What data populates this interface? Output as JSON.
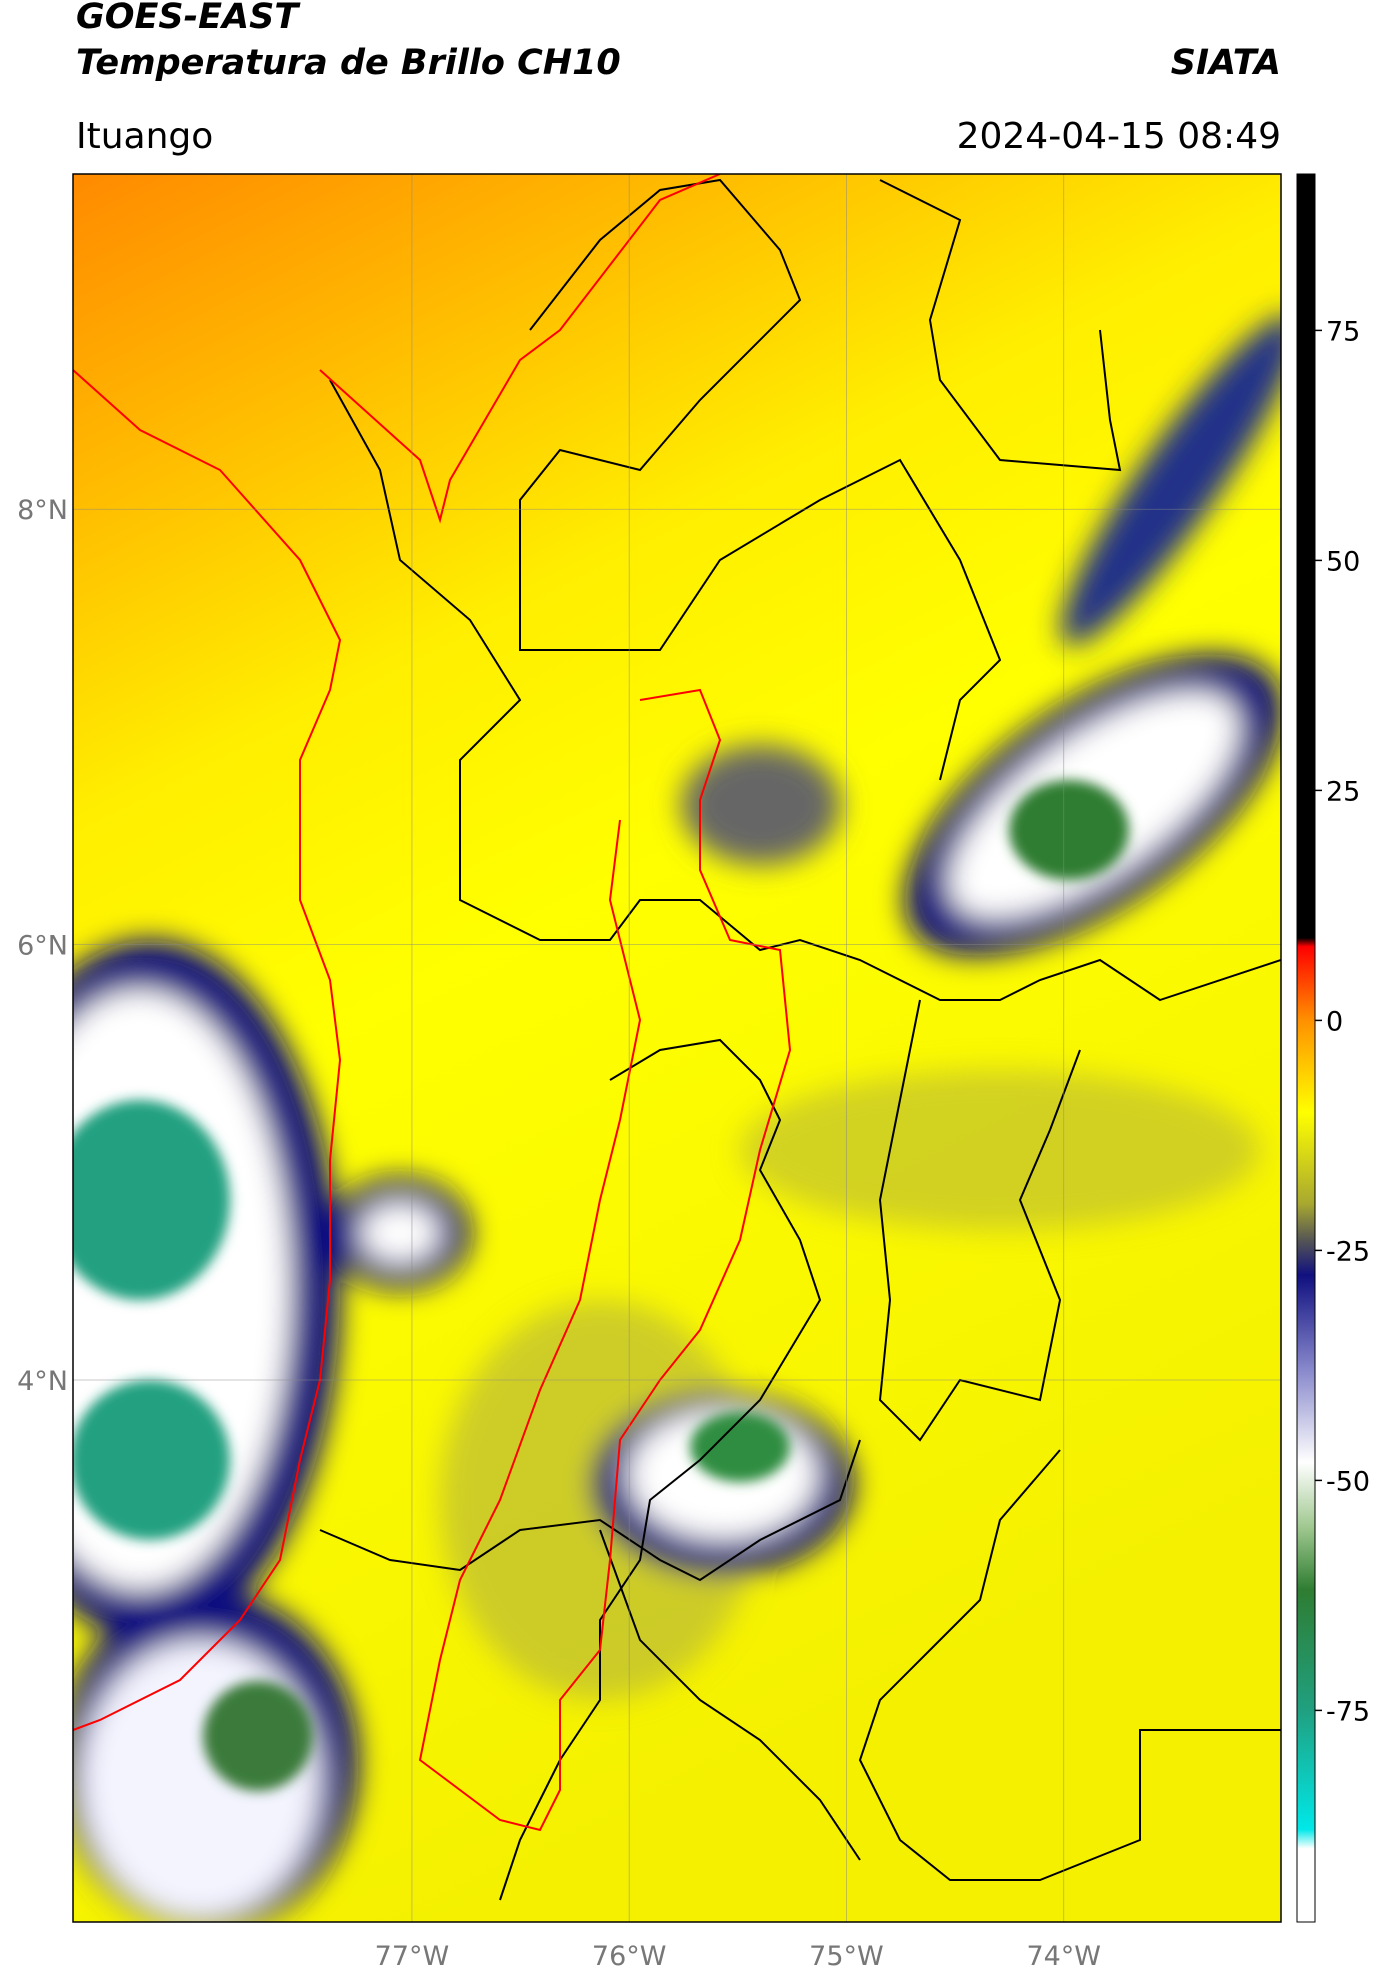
{
  "header": {
    "title": "GOES-EAST",
    "subtitle": "Temperatura de Brillo CH10",
    "brand": "SIATA",
    "location": "Ituango",
    "timestamp": "2024-04-15 08:49"
  },
  "map": {
    "lon_range": [
      -78.56,
      -73.0
    ],
    "lat_range": [
      1.51,
      9.54
    ],
    "lon_ticks": [
      {
        "value": -77,
        "label": "77°W"
      },
      {
        "value": -76,
        "label": "76°W"
      },
      {
        "value": -75,
        "label": "75°W"
      },
      {
        "value": -74,
        "label": "74°W"
      }
    ],
    "lat_ticks": [
      {
        "value": 8,
        "label": "8°N"
      },
      {
        "value": 6,
        "label": "6°N"
      },
      {
        "value": 4,
        "label": "4°N"
      }
    ]
  },
  "colorbar": {
    "range": [
      -98,
      92
    ],
    "ticks": [
      75,
      50,
      25,
      0,
      -25,
      -50,
      -75
    ]
  }
}
